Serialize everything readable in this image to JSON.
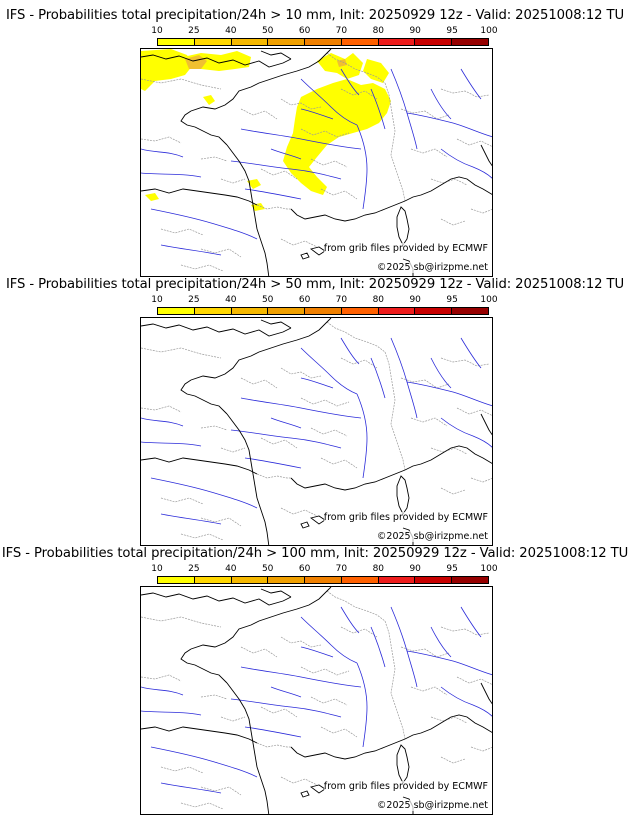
{
  "colorbar": {
    "labels": [
      "10",
      "25",
      "40",
      "50",
      "60",
      "70",
      "80",
      "90",
      "95",
      "100"
    ],
    "colors": [
      "#ffff00",
      "#ffd700",
      "#f5b800",
      "#f0a000",
      "#f08000",
      "#ff6000",
      "#ee1c1c",
      "#c80000",
      "#960000",
      "#640000"
    ]
  },
  "panels": [
    {
      "title": "IFS - Probabilities total precipitation/24h > 10 mm, Init: 20250929 12z - Valid: 20251008:12 TU",
      "source": "from grib files provided by ECMWF",
      "copyright": "©2025 sb@irizpme.net",
      "has_precip": true
    },
    {
      "title": "IFS - Probabilities total precipitation/24h > 50 mm, Init: 20250929 12z - Valid: 20251008:12 TU",
      "source": "from grib files provided by ECMWF",
      "copyright": "©2025 sb@irizpme.net",
      "has_precip": false
    },
    {
      "title": "IFS - Probabilities total precipitation/24h > 100 mm, Init: 20250929 12z - Valid: 20251008:12 TU",
      "source": "from grib files provided by ECMWF",
      "copyright": "©2025 sb@irizpme.net",
      "has_precip": false
    }
  ],
  "colors": {
    "coast": "#000000",
    "rivers": "#2b2bd9",
    "borders": "#9a9a9a",
    "precip_10_25": "#ffff00",
    "precip_25_40": "#f0c030"
  }
}
